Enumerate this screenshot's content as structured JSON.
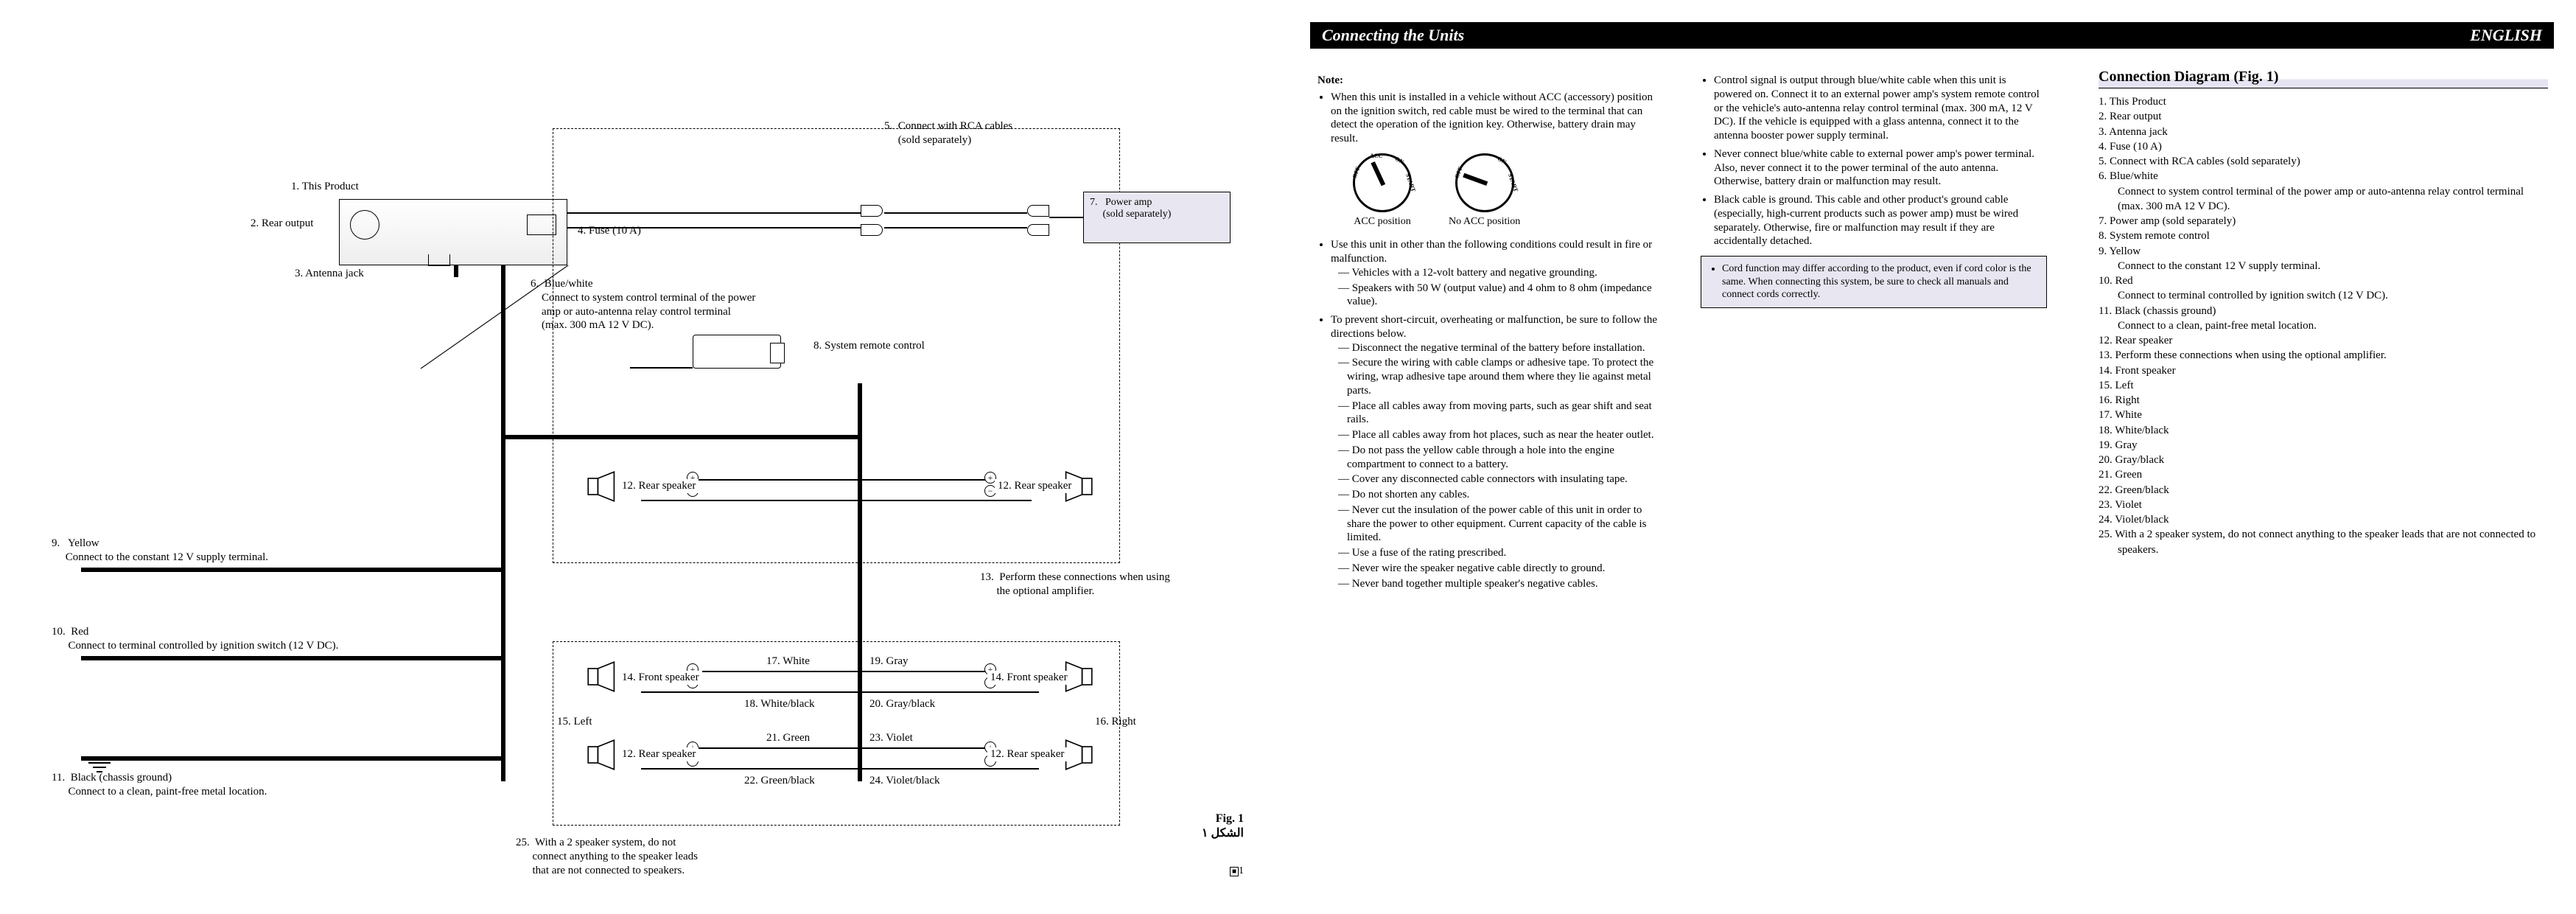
{
  "header": {
    "left_title": "Connecting the Units",
    "right_title": "ENGLISH"
  },
  "fig_caption": {
    "fig": "Fig. 1",
    "arabic": "الشكل ١",
    "pagenum": "1"
  },
  "diagram_labels": {
    "n1": "1. This Product",
    "n2": "2. Rear output",
    "n3": "3. Antenna jack",
    "n4": "4. Fuse (10 A)",
    "n5": "5.  Connect with RCA cables\n     (sold separately)",
    "n6": "6.  Blue/white\n    Connect to system control terminal of the power\n    amp or auto-antenna relay control terminal\n    (max. 300 mA 12 V DC).",
    "n7": "7.   Power amp\n     (sold separately)",
    "n8": "8.   System remote control",
    "n9": "9.   Yellow\n     Connect to the constant 12 V supply terminal.",
    "n10": "10.  Red\n      Connect to terminal controlled by ignition switch (12 V DC).",
    "n11": "11.  Black (chassis ground)\n      Connect to a clean, paint-free metal location.",
    "n12a": "12.  Rear speaker",
    "n12b": "12.  Rear speaker",
    "n12c": "12.  Rear speaker",
    "n12d": "12.  Rear speaker",
    "n13": "13.  Perform these connections when using\n      the optional amplifier.",
    "n14a": "14.  Front speaker",
    "n14b": "14.  Front speaker",
    "n15": "15.  Left",
    "n16": "16.  Right",
    "n17": "17.  White",
    "n18": "18.  White/black",
    "n19": "19.  Gray",
    "n20": "20.  Gray/black",
    "n21": "21.  Green",
    "n22": "22.  Green/black",
    "n23": "23.  Violet",
    "n24": "24.  Violet/black",
    "n25": "25.  With a 2 speaker system, do not\n      connect anything to the speaker leads\n      that are not connected to speakers."
  },
  "notes": {
    "header": "Note:",
    "col1": [
      {
        "text": "When this unit is installed in a vehicle without ACC (accessory) position on the ignition switch, red cable must be wired to the terminal that can detect the operation of the ignition key. Otherwise, battery drain may result."
      },
      {
        "text": "Use this unit in other than the following conditions could result in fire or malfunction.",
        "sub": [
          "Vehicles with a 12-volt battery and negative grounding.",
          "Speakers with 50 W (output value) and 4 ohm to 8 ohm (impedance value)."
        ]
      },
      {
        "text": "To prevent short-circuit, overheating or malfunction, be sure to follow the directions below.",
        "sub": [
          "Disconnect the negative terminal of the battery before installation.",
          "Secure the wiring with cable clamps or adhesive tape. To protect the wiring, wrap adhesive tape around them where they lie against metal parts.",
          "Place all cables away from moving parts, such as gear shift and seat rails.",
          "Place all cables away from hot places, such as near the heater outlet.",
          "Do not pass the yellow cable through a hole into the engine compartment to connect to a battery.",
          "Cover any disconnected cable connectors with insulating tape.",
          "Do not shorten any cables.",
          "Never cut the insulation of the power cable of this unit in order to share the power to other equipment. Current capacity of the cable is limited.",
          "Use a fuse of the rating prescribed.",
          "Never wire the speaker negative cable directly to ground.",
          "Never band together multiple speaker's negative cables."
        ]
      }
    ],
    "acc_a": "ACC position",
    "acc_b": "No ACC position",
    "dial": {
      "off": "OFF",
      "acc": "ACC",
      "on": "ON",
      "start": "START"
    },
    "col2": [
      "Control signal is output through blue/white cable when this unit is powered on. Connect it to an external power amp's system remote control or the vehicle's auto-antenna relay control terminal (max. 300 mA, 12 V DC). If the vehicle is equipped with a glass antenna, connect it to the antenna booster power supply terminal.",
      "Never connect blue/white cable to external power amp's power terminal. Also, never connect it to the power terminal of the auto antenna. Otherwise, battery drain or malfunction may result.",
      "Black cable is ground. This cable and other product's ground cable (especially, high-current products such as power amp) must be wired separately. Otherwise, fire or malfunction may result if they are accidentally detached."
    ],
    "shade": "Cord function may differ according to the product, even if cord color is the same. When connecting this system, be sure to check all manuals and connect cords correctly."
  },
  "legend": {
    "title": "Connection Diagram (Fig. 1)",
    "items": [
      {
        "n": "1.",
        "t": "This Product"
      },
      {
        "n": "2.",
        "t": "Rear output"
      },
      {
        "n": "3.",
        "t": "Antenna jack"
      },
      {
        "n": "4.",
        "t": "Fuse (10 A)"
      },
      {
        "n": "5.",
        "t": "Connect with RCA cables (sold separately)"
      },
      {
        "n": "6.",
        "t": "Blue/white",
        "sub": "Connect to system control terminal of the power amp or auto-antenna relay control terminal (max. 300 mA 12 V DC)."
      },
      {
        "n": "7.",
        "t": "Power amp (sold separately)"
      },
      {
        "n": "8.",
        "t": "System remote control"
      },
      {
        "n": "9.",
        "t": "Yellow",
        "sub": "Connect to the constant 12 V supply terminal."
      },
      {
        "n": "10.",
        "t": "Red",
        "sub": "Connect to terminal controlled by ignition switch (12 V DC)."
      },
      {
        "n": "11.",
        "t": "Black (chassis ground)",
        "sub": "Connect to a clean, paint-free metal location."
      },
      {
        "n": "12.",
        "t": "Rear speaker"
      },
      {
        "n": "13.",
        "t": "Perform these connections when using the optional amplifier."
      },
      {
        "n": "14.",
        "t": "Front speaker"
      },
      {
        "n": "15.",
        "t": "Left"
      },
      {
        "n": "16.",
        "t": "Right"
      },
      {
        "n": "17.",
        "t": "White"
      },
      {
        "n": "18.",
        "t": "White/black"
      },
      {
        "n": "19.",
        "t": "Gray"
      },
      {
        "n": "20.",
        "t": "Gray/black"
      },
      {
        "n": "21.",
        "t": "Green"
      },
      {
        "n": "22.",
        "t": "Green/black"
      },
      {
        "n": "23.",
        "t": "Violet"
      },
      {
        "n": "24.",
        "t": "Violet/black"
      },
      {
        "n": "25.",
        "t": "With a 2 speaker system, do not connect anything to the speaker leads that are not connected to speakers."
      }
    ]
  },
  "colors": {
    "shade_bg": "#e8e6f0"
  }
}
